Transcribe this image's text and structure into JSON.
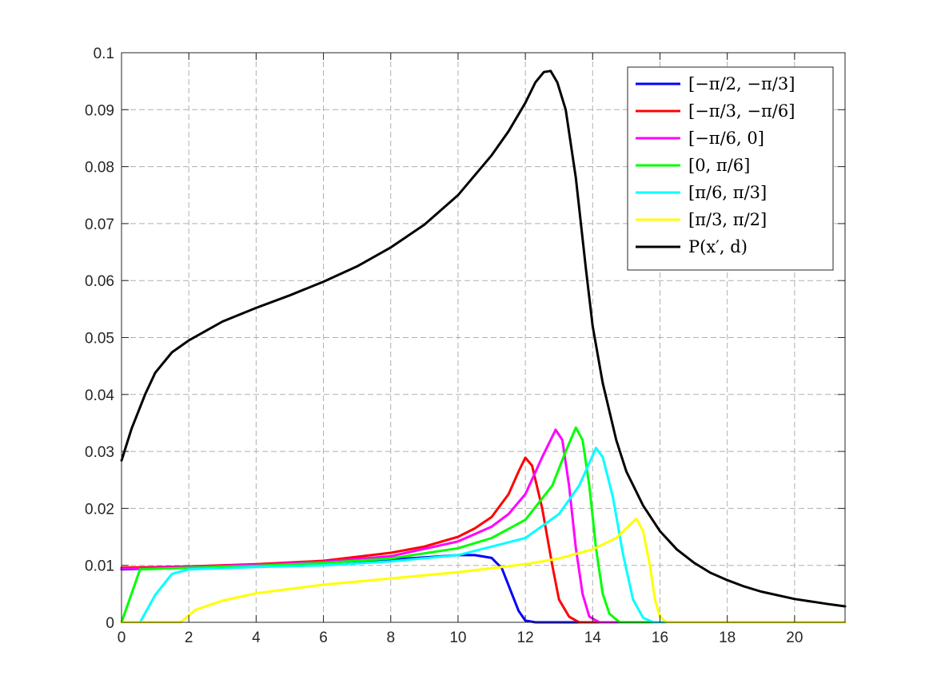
{
  "chart_data": {
    "type": "line",
    "title": "",
    "xlabel": "",
    "ylabel": "",
    "xlim": [
      0,
      21.5
    ],
    "ylim": [
      0,
      0.1
    ],
    "grid": true,
    "legend_placement": "top-right",
    "x_ticks": [
      "0",
      "2",
      "4",
      "6",
      "8",
      "10",
      "12",
      "14",
      "16",
      "18",
      "20"
    ],
    "y_ticks": [
      "0",
      "0.01",
      "0.02",
      "0.03",
      "0.04",
      "0.05",
      "0.06",
      "0.07",
      "0.08",
      "0.09",
      "0.1"
    ],
    "series": [
      {
        "name": "[−π/2, −π/3]",
        "color": "#0000ff",
        "points": [
          [
            0,
            0.0093
          ],
          [
            1,
            0.0095
          ],
          [
            2,
            0.0098
          ],
          [
            4,
            0.0101
          ],
          [
            6,
            0.0105
          ],
          [
            8,
            0.011
          ],
          [
            9,
            0.0114
          ],
          [
            10,
            0.0118
          ],
          [
            10.5,
            0.0118
          ],
          [
            11,
            0.0113
          ],
          [
            11.3,
            0.0095
          ],
          [
            11.6,
            0.005
          ],
          [
            11.8,
            0.002
          ],
          [
            12,
            0.0003
          ],
          [
            12.3,
            0
          ],
          [
            21.5,
            0
          ]
        ]
      },
      {
        "name": "[−π/3, −π/6]",
        "color": "#ff0000",
        "points": [
          [
            0,
            0.0096
          ],
          [
            2,
            0.0098
          ],
          [
            4,
            0.0102
          ],
          [
            6,
            0.0108
          ],
          [
            8,
            0.0122
          ],
          [
            9,
            0.0133
          ],
          [
            10,
            0.015
          ],
          [
            10.5,
            0.0165
          ],
          [
            11,
            0.0185
          ],
          [
            11.5,
            0.0225
          ],
          [
            11.8,
            0.0265
          ],
          [
            12,
            0.0289
          ],
          [
            12.2,
            0.0275
          ],
          [
            12.5,
            0.02
          ],
          [
            12.8,
            0.01
          ],
          [
            13,
            0.004
          ],
          [
            13.3,
            0.001
          ],
          [
            13.6,
            0
          ],
          [
            21.5,
            0
          ]
        ]
      },
      {
        "name": "[−π/6, 0]",
        "color": "#ff00ff",
        "points": [
          [
            0,
            0.0094
          ],
          [
            2,
            0.0097
          ],
          [
            4,
            0.0101
          ],
          [
            6,
            0.0106
          ],
          [
            8,
            0.0116
          ],
          [
            10,
            0.0142
          ],
          [
            11,
            0.0168
          ],
          [
            11.5,
            0.019
          ],
          [
            12,
            0.0225
          ],
          [
            12.5,
            0.029
          ],
          [
            12.9,
            0.0338
          ],
          [
            13.1,
            0.032
          ],
          [
            13.3,
            0.024
          ],
          [
            13.5,
            0.013
          ],
          [
            13.7,
            0.005
          ],
          [
            13.9,
            0.001
          ],
          [
            14.2,
            0
          ],
          [
            21.5,
            0
          ]
        ]
      },
      {
        "name": "[0, π/6]",
        "color": "#00ff00",
        "points": [
          [
            0,
            0
          ],
          [
            0.55,
            0.0093
          ],
          [
            2,
            0.0096
          ],
          [
            4,
            0.0099
          ],
          [
            6,
            0.0104
          ],
          [
            8,
            0.0112
          ],
          [
            10,
            0.013
          ],
          [
            11,
            0.0148
          ],
          [
            12,
            0.018
          ],
          [
            12.8,
            0.024
          ],
          [
            13.2,
            0.03
          ],
          [
            13.5,
            0.0342
          ],
          [
            13.7,
            0.032
          ],
          [
            13.9,
            0.024
          ],
          [
            14.1,
            0.013
          ],
          [
            14.3,
            0.005
          ],
          [
            14.5,
            0.0015
          ],
          [
            14.8,
            0
          ],
          [
            21.5,
            0
          ]
        ]
      },
      {
        "name": "[π/6, π/3]",
        "color": "#00ffff",
        "points": [
          [
            0.55,
            0
          ],
          [
            1,
            0.0048
          ],
          [
            1.5,
            0.0085
          ],
          [
            2,
            0.0093
          ],
          [
            4,
            0.0097
          ],
          [
            6,
            0.01
          ],
          [
            8,
            0.0107
          ],
          [
            10,
            0.0118
          ],
          [
            12,
            0.0148
          ],
          [
            13,
            0.019
          ],
          [
            13.6,
            0.024
          ],
          [
            14.1,
            0.0306
          ],
          [
            14.3,
            0.029
          ],
          [
            14.6,
            0.022
          ],
          [
            14.9,
            0.012
          ],
          [
            15.2,
            0.004
          ],
          [
            15.5,
            0.0008
          ],
          [
            15.8,
            0
          ],
          [
            21.5,
            0
          ]
        ]
      },
      {
        "name": "[π/3, π/2]",
        "color": "#ffff00",
        "points": [
          [
            0,
            0
          ],
          [
            1.75,
            0
          ],
          [
            2.2,
            0.0022
          ],
          [
            3,
            0.0038
          ],
          [
            4,
            0.0051
          ],
          [
            6,
            0.0066
          ],
          [
            8,
            0.0077
          ],
          [
            10,
            0.0088
          ],
          [
            12,
            0.0102
          ],
          [
            13,
            0.0112
          ],
          [
            14,
            0.0128
          ],
          [
            14.7,
            0.0148
          ],
          [
            15.3,
            0.0182
          ],
          [
            15.5,
            0.016
          ],
          [
            15.7,
            0.01
          ],
          [
            15.85,
            0.004
          ],
          [
            16,
            0.001
          ],
          [
            16.2,
            0
          ],
          [
            21.5,
            0
          ]
        ]
      },
      {
        "name": "P(x′, d)",
        "color": "#000000",
        "points": [
          [
            0,
            0.0284
          ],
          [
            0.3,
            0.034
          ],
          [
            0.7,
            0.04
          ],
          [
            1,
            0.0438
          ],
          [
            1.5,
            0.0474
          ],
          [
            2,
            0.0495
          ],
          [
            3,
            0.0528
          ],
          [
            4,
            0.0552
          ],
          [
            5,
            0.0574
          ],
          [
            6,
            0.0598
          ],
          [
            7,
            0.0625
          ],
          [
            8,
            0.0658
          ],
          [
            9,
            0.0698
          ],
          [
            10,
            0.075
          ],
          [
            11,
            0.082
          ],
          [
            11.5,
            0.0862
          ],
          [
            12,
            0.0912
          ],
          [
            12.3,
            0.0948
          ],
          [
            12.55,
            0.0966
          ],
          [
            12.75,
            0.0968
          ],
          [
            12.95,
            0.0948
          ],
          [
            13.2,
            0.09
          ],
          [
            13.5,
            0.078
          ],
          [
            13.8,
            0.062
          ],
          [
            14,
            0.052
          ],
          [
            14.3,
            0.042
          ],
          [
            14.7,
            0.032
          ],
          [
            15,
            0.0265
          ],
          [
            15.5,
            0.0205
          ],
          [
            16,
            0.016
          ],
          [
            16.5,
            0.0128
          ],
          [
            17,
            0.0105
          ],
          [
            17.5,
            0.0087
          ],
          [
            18,
            0.0074
          ],
          [
            18.5,
            0.0063
          ],
          [
            19,
            0.0054
          ],
          [
            20,
            0.0041
          ],
          [
            21,
            0.0032
          ],
          [
            21.5,
            0.0028
          ]
        ]
      }
    ]
  }
}
